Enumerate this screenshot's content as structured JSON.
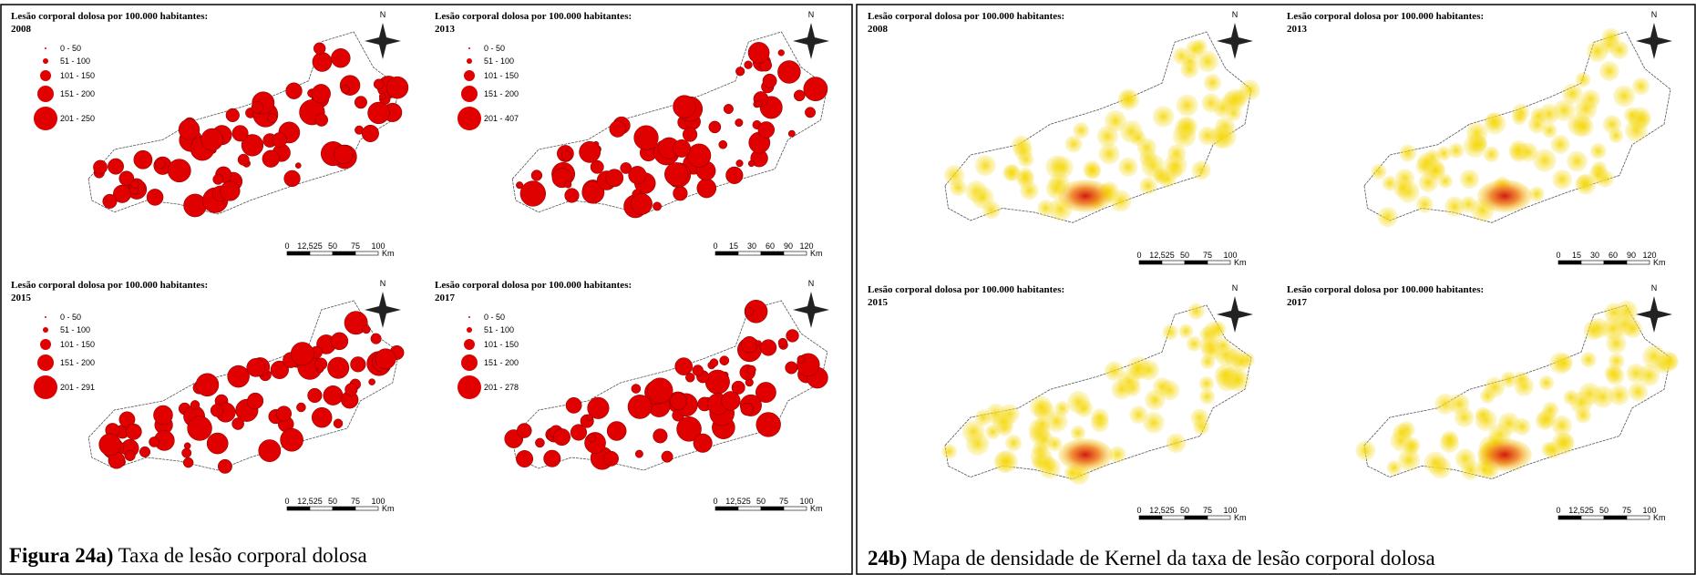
{
  "panel_a": {
    "caption_label": "Figura 24a)",
    "caption_text": "Taxa de lesão corporal dolosa",
    "maps": [
      {
        "title": "Lesão corporal dolosa por 100.000 habitantes:",
        "year": "2008",
        "north": "N",
        "legend": [
          "0 - 50",
          "51 - 100",
          "101 - 150",
          "151 - 200",
          "201 - 250"
        ],
        "scale": [
          "0",
          "12,525",
          "50",
          "75",
          "100"
        ],
        "scale_unit": "Km"
      },
      {
        "title": "Lesão corporal dolosa por 100.000 habitantes:",
        "year": "2013",
        "north": "N",
        "legend": [
          "0 - 50",
          "51 - 100",
          "101 - 150",
          "151 - 200",
          "201 - 407"
        ],
        "scale": [
          "0",
          "15",
          "30",
          "60",
          "90",
          "120"
        ],
        "scale_unit": "Km"
      },
      {
        "title": "Lesão corporal dolosa por 100.000 habitantes:",
        "year": "2015",
        "north": "N",
        "legend": [
          "0 - 50",
          "51 - 100",
          "101 - 150",
          "151 - 200",
          "201 - 291"
        ],
        "scale": [
          "0",
          "12,525",
          "50",
          "75",
          "100"
        ],
        "scale_unit": "Km"
      },
      {
        "title": "Lesão corporal dolosa por 100.000 habitantes:",
        "year": "2017",
        "north": "N",
        "legend": [
          "0 - 50",
          "51 - 100",
          "101 - 150",
          "151 - 200",
          "201 - 278"
        ],
        "scale": [
          "0",
          "12,525",
          "50",
          "75",
          "100"
        ],
        "scale_unit": "Km"
      }
    ]
  },
  "panel_b": {
    "caption_label": "24b)",
    "caption_text": "Mapa de densidade de Kernel da taxa de lesão corporal dolosa",
    "maps": [
      {
        "title": "Lesão corporal dolosa por 100.000 habitantes:",
        "year": "2008",
        "north": "N",
        "scale": [
          "0",
          "12,525",
          "50",
          "75",
          "100"
        ],
        "scale_unit": "Km"
      },
      {
        "title": "Lesão corporal dolosa por 100.000 habitantes:",
        "year": "2013",
        "north": "N",
        "scale": [
          "0",
          "15",
          "30",
          "60",
          "90",
          "120"
        ],
        "scale_unit": "Km"
      },
      {
        "title": "Lesão corporal dolosa por 100.000 habitantes:",
        "year": "2015",
        "north": "N",
        "scale": [
          "0",
          "12,525",
          "50",
          "75",
          "100"
        ],
        "scale_unit": "Km"
      },
      {
        "title": "Lesão corporal dolosa por 100.000 habitantes:",
        "year": "2017",
        "north": "N",
        "scale": [
          "0",
          "12,525",
          "50",
          "75",
          "100"
        ],
        "scale_unit": "Km"
      }
    ]
  }
}
